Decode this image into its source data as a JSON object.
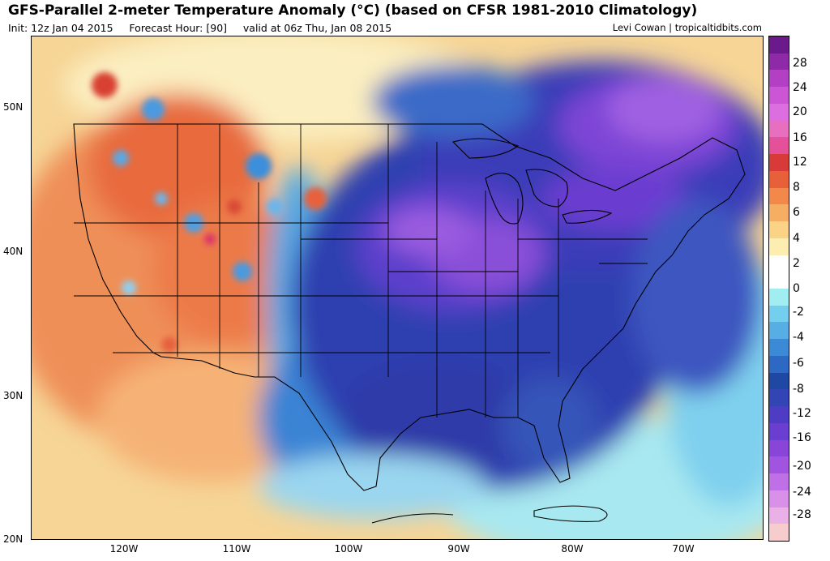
{
  "header": {
    "title": "GFS-Parallel 2-meter Temperature Anomaly (°C) (based on CFSR 1981-2010 Climatology)",
    "init": "Init: 12z Jan 04 2015",
    "forecast": "Forecast Hour: [90]",
    "valid": "valid at 06z Thu, Jan 08 2015",
    "credit": "Levi Cowan | tropicaltidbits.com"
  },
  "axes": {
    "lat_labels": [
      "50N",
      "40N",
      "30N",
      "20N"
    ],
    "lon_labels": [
      "120W",
      "110W",
      "100W",
      "90W",
      "80W",
      "70W"
    ]
  },
  "colorbar": {
    "labels": [
      "28",
      "24",
      "20",
      "16",
      "12",
      "8",
      "6",
      "4",
      "2",
      "0",
      "-2",
      "-4",
      "-6",
      "-8",
      "-12",
      "-16",
      "-20",
      "-24",
      "-28"
    ],
    "colors": [
      "#6a1a8a",
      "#8e2aa8",
      "#b23fc4",
      "#cc55d6",
      "#dd6ee0",
      "#e86fc0",
      "#e4509a",
      "#d83a3a",
      "#e8603a",
      "#f2884a",
      "#f6ae62",
      "#fad386",
      "#fbeeb0",
      "#ffffff",
      "#ffffff",
      "#a0eef2",
      "#74cfee",
      "#56aee4",
      "#3c8ad6",
      "#2c68c4",
      "#1f48a4",
      "#3344b4",
      "#4e3cc4",
      "#6a3ed0",
      "#8845d8",
      "#a054e0",
      "#c070e6",
      "#d890e8",
      "#eab0e8",
      "#f7cccc"
    ]
  }
}
